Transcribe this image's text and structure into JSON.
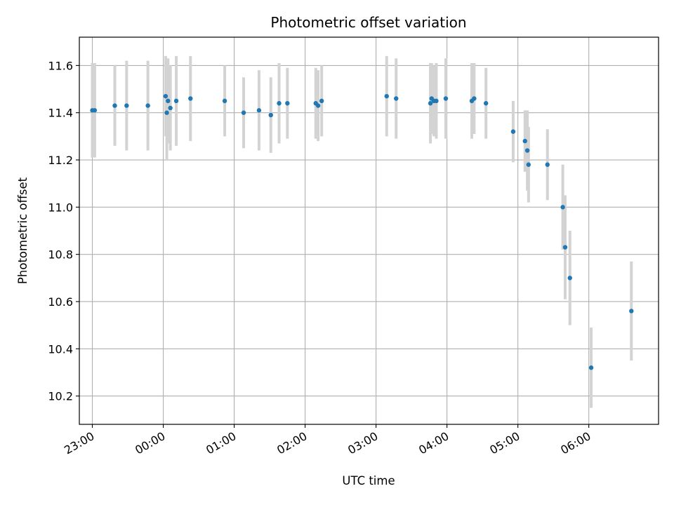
{
  "chart_data": {
    "type": "scatter",
    "title": "Photometric offset variation",
    "xlabel": "UTC time",
    "ylabel": "Photometric offset",
    "x_tick_labels": [
      "23:00",
      "00:00",
      "01:00",
      "02:00",
      "03:00",
      "04:00",
      "05:00",
      "06:00"
    ],
    "y_tick_labels": [
      "10.2",
      "10.4",
      "10.6",
      "10.8",
      "11.0",
      "11.2",
      "11.4",
      "11.6"
    ],
    "xlim": [
      "22:49",
      "06:59"
    ],
    "ylim": [
      10.08,
      11.72
    ],
    "grid": true,
    "errorbar_color": "#d3d3d3",
    "point_color": "#1f77b4",
    "points": [
      {
        "x": "23:00",
        "y": 11.41,
        "yerr": 0.2
      },
      {
        "x": "23:02",
        "y": 11.41,
        "yerr": 0.2
      },
      {
        "x": "23:19",
        "y": 11.43,
        "yerr": 0.17
      },
      {
        "x": "23:29",
        "y": 11.43,
        "yerr": 0.19
      },
      {
        "x": "23:47",
        "y": 11.43,
        "yerr": 0.19
      },
      {
        "x": "00:02",
        "y": 11.47,
        "yerr": 0.17
      },
      {
        "x": "00:03",
        "y": 11.4,
        "yerr": 0.2
      },
      {
        "x": "00:04",
        "y": 11.45,
        "yerr": 0.18
      },
      {
        "x": "00:06",
        "y": 11.42,
        "yerr": 0.18
      },
      {
        "x": "00:11",
        "y": 11.45,
        "yerr": 0.19
      },
      {
        "x": "00:23",
        "y": 11.46,
        "yerr": 0.18
      },
      {
        "x": "00:52",
        "y": 11.45,
        "yerr": 0.15
      },
      {
        "x": "01:08",
        "y": 11.4,
        "yerr": 0.15
      },
      {
        "x": "01:21",
        "y": 11.41,
        "yerr": 0.17
      },
      {
        "x": "01:31",
        "y": 11.39,
        "yerr": 0.16
      },
      {
        "x": "01:38",
        "y": 11.44,
        "yerr": 0.17
      },
      {
        "x": "01:45",
        "y": 11.44,
        "yerr": 0.15
      },
      {
        "x": "02:09",
        "y": 11.44,
        "yerr": 0.15
      },
      {
        "x": "02:11",
        "y": 11.43,
        "yerr": 0.15
      },
      {
        "x": "02:14",
        "y": 11.45,
        "yerr": 0.15
      },
      {
        "x": "03:09",
        "y": 11.47,
        "yerr": 0.17
      },
      {
        "x": "03:17",
        "y": 11.46,
        "yerr": 0.17
      },
      {
        "x": "03:46",
        "y": 11.44,
        "yerr": 0.17
      },
      {
        "x": "03:47",
        "y": 11.46,
        "yerr": 0.15
      },
      {
        "x": "03:49",
        "y": 11.45,
        "yerr": 0.15
      },
      {
        "x": "03:51",
        "y": 11.45,
        "yerr": 0.16
      },
      {
        "x": "03:59",
        "y": 11.46,
        "yerr": 0.17
      },
      {
        "x": "04:21",
        "y": 11.45,
        "yerr": 0.16
      },
      {
        "x": "04:23",
        "y": 11.46,
        "yerr": 0.15
      },
      {
        "x": "04:33",
        "y": 11.44,
        "yerr": 0.15
      },
      {
        "x": "04:56",
        "y": 11.32,
        "yerr": 0.13
      },
      {
        "x": "05:06",
        "y": 11.28,
        "yerr": 0.13
      },
      {
        "x": "05:08",
        "y": 11.24,
        "yerr": 0.17
      },
      {
        "x": "05:09",
        "y": 11.18,
        "yerr": 0.16
      },
      {
        "x": "05:25",
        "y": 11.18,
        "yerr": 0.15
      },
      {
        "x": "05:38",
        "y": 11.0,
        "yerr": 0.18
      },
      {
        "x": "05:40",
        "y": 10.83,
        "yerr": 0.22
      },
      {
        "x": "05:44",
        "y": 10.7,
        "yerr": 0.2
      },
      {
        "x": "06:02",
        "y": 10.32,
        "yerr": 0.17
      },
      {
        "x": "06:36",
        "y": 10.56,
        "yerr": 0.21
      }
    ]
  }
}
